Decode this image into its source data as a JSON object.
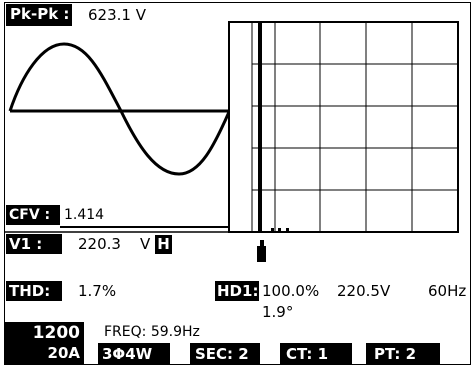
{
  "top": {
    "pkpk_label": "Pk-Pk :",
    "pkpk_value": "623.1 V"
  },
  "cfv": {
    "label": "CFV :",
    "value": "1.414"
  },
  "v1": {
    "label": "V1 :",
    "value": "220.3",
    "unit": "V",
    "hold": "H"
  },
  "thd": {
    "label": "THD:",
    "value": "1.7%"
  },
  "hd1": {
    "label": "HD1:",
    "percent": "100.0%",
    "voltage": "220.5V",
    "freq": "60Hz",
    "angle": "1.9°"
  },
  "bottom": {
    "range_top": "1200",
    "range_bottom": "20A",
    "freq_label": "FREQ: 59.9Hz",
    "wiring": "3Φ4W",
    "sec": "SEC: 2",
    "ct": "CT:  1",
    "pt": "PT:  2"
  }
}
